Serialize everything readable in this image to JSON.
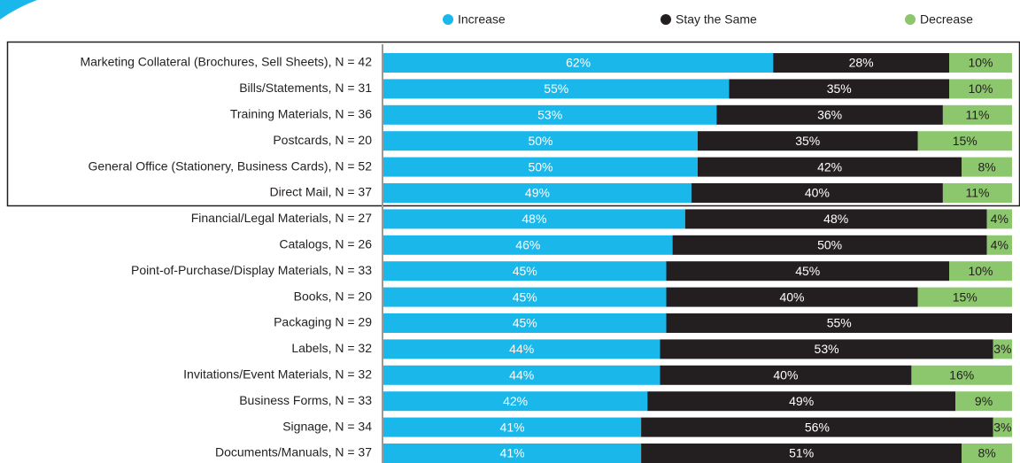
{
  "chart_data": {
    "type": "stacked-bar-horizontal",
    "categories": [
      "Marketing Collateral (Brochures, Sell Sheets), N = 42",
      "Bills/Statements, N = 31",
      "Training Materials, N = 36",
      "Postcards, N = 20",
      "General Office (Stationery, Business Cards), N = 52",
      "Direct Mail, N = 37",
      "Financial/Legal Materials, N = 27",
      "Catalogs, N = 26",
      "Point-of-Purchase/Display Materials, N = 33",
      "Books, N = 20",
      "Packaging N = 29",
      "Labels, N = 32",
      "Invitations/Event Materials, N = 32",
      "Business Forms, N = 33",
      "Signage, N = 34",
      "Documents/Manuals, N = 37"
    ],
    "series": [
      {
        "name": "Increase",
        "color": "#1ab7ea",
        "values": [
          62,
          55,
          53,
          50,
          50,
          49,
          48,
          46,
          45,
          45,
          45,
          44,
          44,
          42,
          41,
          41
        ],
        "value_labels": [
          "62%",
          "55%",
          "53%",
          "50%",
          "50%",
          "49%",
          "48%",
          "46%",
          "45%",
          "45%",
          "45%",
          "44%",
          "44%",
          "42%",
          "41%",
          "41%"
        ]
      },
      {
        "name": "Stay the Same",
        "color": "#231f20",
        "values": [
          28,
          35,
          36,
          35,
          42,
          40,
          48,
          50,
          45,
          40,
          55,
          53,
          40,
          49,
          56,
          51
        ],
        "value_labels": [
          "28%",
          "35%",
          "36%",
          "35%",
          "42%",
          "40%",
          "48%",
          "50%",
          "45%",
          "40%",
          "55%",
          "53%",
          "40%",
          "49%",
          "56%",
          "51%"
        ]
      },
      {
        "name": "Decrease",
        "color": "#8cc66d",
        "values": [
          10,
          10,
          11,
          15,
          8,
          11,
          4,
          4,
          10,
          15,
          0,
          3,
          16,
          9,
          3,
          8
        ],
        "value_labels": [
          "10%",
          "10%",
          "11%",
          "15%",
          "8%",
          "11%",
          "4%",
          "4%",
          "10%",
          "15%",
          null,
          "3%",
          "16%",
          "9%",
          "3%",
          "8%"
        ]
      }
    ],
    "xlim": [
      0,
      100
    ]
  }
}
